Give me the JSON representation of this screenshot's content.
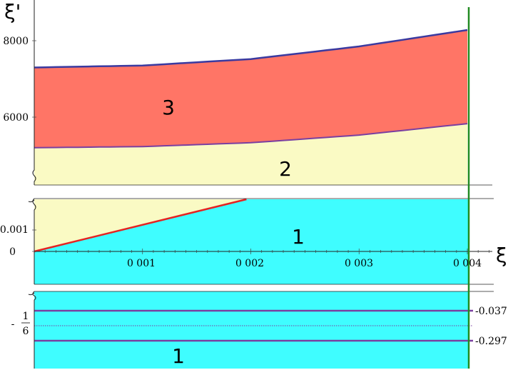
{
  "chart_data": [
    {
      "type": "area",
      "panel": "top",
      "ylabel": "ξ'",
      "ylim": [
        4950,
        9000
      ],
      "xlim": [
        0,
        0.00435
      ],
      "yticks": [
        "8000",
        "6000"
      ],
      "ytick_values": [
        8000,
        6000
      ],
      "regions": [
        {
          "label": "3",
          "color": "#ff7566"
        },
        {
          "label": "2",
          "color": "#fafac4"
        }
      ],
      "boundaries": [
        {
          "color": "#3a3aa0",
          "x": [
            0,
            0.001,
            0.002,
            0.003,
            0.004
          ],
          "y": [
            7300,
            7350,
            7520,
            7850,
            8280
          ]
        },
        {
          "color": "#7a3fa0",
          "x": [
            0,
            0.001,
            0.002,
            0.003,
            0.004
          ],
          "y": [
            5200,
            5230,
            5330,
            5530,
            5830
          ]
        }
      ]
    },
    {
      "type": "area",
      "panel": "middle",
      "xlabel": "ξ",
      "ylim": [
        -0.0006,
        0.0016
      ],
      "xlim": [
        0,
        0.00435
      ],
      "yticks": [
        "0.001",
        "0"
      ],
      "ytick_values": [
        0.001,
        0
      ],
      "xticks": [
        "0 001",
        "0 002",
        "0 003",
        "0 004"
      ],
      "xtick_values": [
        0.001,
        0.002,
        0.003,
        0.004
      ],
      "regions": [
        {
          "label": "1",
          "color": "#3ffdff"
        },
        {
          "label": "",
          "color": "#fafac4"
        }
      ],
      "boundaries": [
        {
          "color": "#e52222",
          "x": [
            0,
            0.00196
          ],
          "y": [
            0,
            0.00145
          ]
        }
      ]
    },
    {
      "type": "line",
      "panel": "bottom",
      "ylim": [
        -0.43,
        0.1
      ],
      "yticks": [
        "-0.037",
        "-0.297"
      ],
      "ytick_values": [
        -0.037,
        -0.297
      ],
      "ymid_label": {
        "sign": "-",
        "numerator": "1",
        "denominator": "6"
      },
      "ymid_value": -0.1667,
      "regions": [
        {
          "label": "1",
          "color": "#3ffdff"
        }
      ],
      "hlines": [
        {
          "y": -0.037,
          "color": "#7a3fa0"
        },
        {
          "y": -0.297,
          "color": "#7a3fa0"
        },
        {
          "y": -0.1667,
          "color": "#7a3fa0",
          "dotted": true
        }
      ]
    }
  ],
  "vline": {
    "x": 0.004,
    "color": "#228b22"
  }
}
